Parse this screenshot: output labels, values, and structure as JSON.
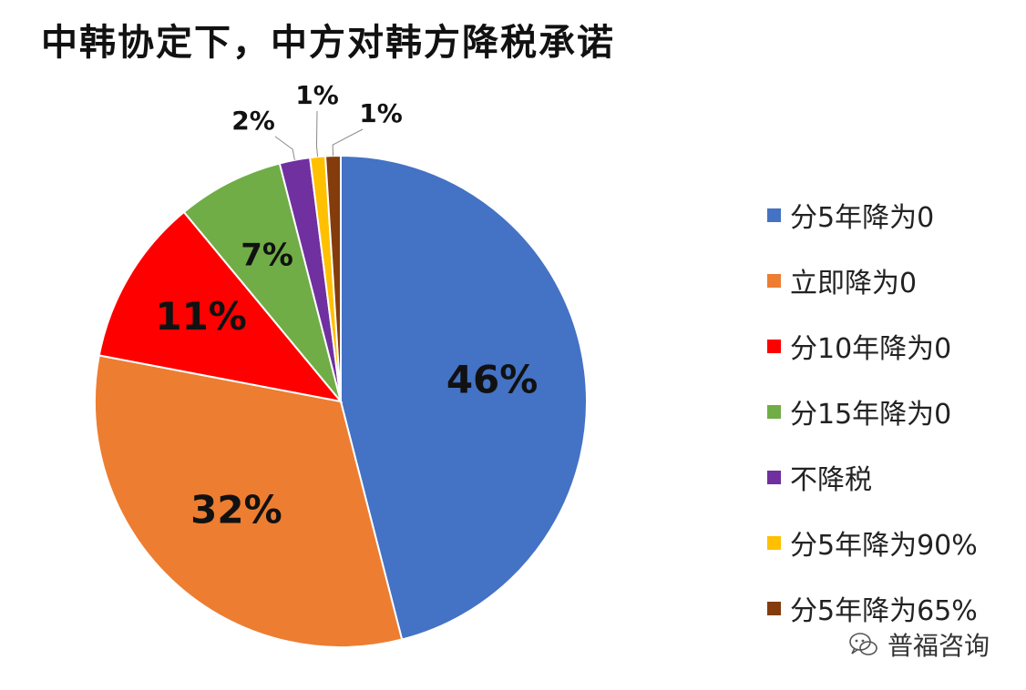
{
  "chart_data": {
    "type": "pie",
    "title": "中韩协定下，中方对韩方降税承诺",
    "slices": [
      {
        "name": "分5年降为0",
        "value": 46,
        "label": "46%",
        "color": "#4472C4"
      },
      {
        "name": "立即降为0",
        "value": 32,
        "label": "32%",
        "color": "#ED7D31"
      },
      {
        "name": "分10年降为0",
        "value": 11,
        "label": "11%",
        "color": "#FF0000"
      },
      {
        "name": "分15年降为0",
        "value": 7,
        "label": "7%",
        "color": "#70AD47"
      },
      {
        "name": "不降税",
        "value": 2,
        "label": "2%",
        "color": "#7030A0"
      },
      {
        "name": "分5年降为90%",
        "value": 1,
        "label": "1%",
        "color": "#FFC000"
      },
      {
        "name": "分5年降为65%",
        "value": 1,
        "label": "1%",
        "color": "#843C0C"
      }
    ],
    "legend_position": "right"
  },
  "watermark": {
    "text": "普福咨询",
    "icon": "wechat-bubble-icon"
  }
}
